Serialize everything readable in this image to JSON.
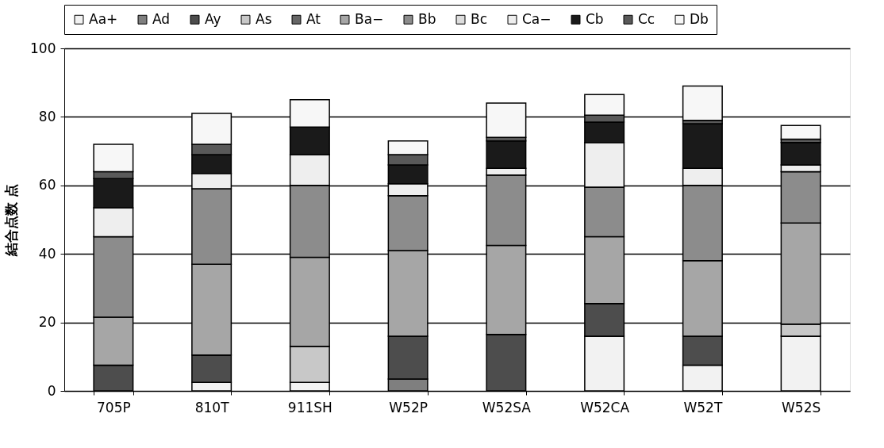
{
  "chart_data": {
    "type": "bar",
    "stacked": true,
    "ylabel": "結合点数  点",
    "categories": [
      "705P",
      "810T",
      "911SH",
      "W52P",
      "W52SA",
      "W52CA",
      "W52T",
      "W52S"
    ],
    "ylim": [
      0,
      100
    ],
    "yticks": [
      0,
      20,
      40,
      60,
      80,
      100
    ],
    "grid": "y",
    "legend": "top",
    "series": [
      {
        "name": "Aa+",
        "color": "#f2f2f2",
        "values": [
          0,
          2.5,
          2.5,
          0,
          0,
          16,
          7.5,
          16
        ]
      },
      {
        "name": "Ad",
        "color": "#7f7f7f",
        "values": [
          0,
          0,
          0,
          3.5,
          0,
          0,
          0,
          0
        ]
      },
      {
        "name": "Ay",
        "color": "#4d4d4d",
        "values": [
          7.5,
          8,
          0,
          12.5,
          16.5,
          9.5,
          8.5,
          0
        ]
      },
      {
        "name": "As",
        "color": "#c8c8c8",
        "values": [
          0,
          0,
          10.5,
          0,
          0,
          0,
          0,
          3.5
        ]
      },
      {
        "name": "At",
        "color": "#666666",
        "values": [
          0,
          0,
          0,
          0,
          0,
          0,
          0,
          0
        ]
      },
      {
        "name": "Ba−",
        "color": "#a6a6a6",
        "values": [
          14,
          26.5,
          26,
          25,
          26,
          19.5,
          22,
          29.5
        ]
      },
      {
        "name": "Bb",
        "color": "#8c8c8c",
        "values": [
          23.5,
          22,
          21,
          16,
          20.5,
          14.5,
          22,
          15
        ]
      },
      {
        "name": "Bc",
        "color": "#dddddd",
        "values": [
          0,
          0,
          0,
          0,
          0,
          0,
          0,
          0
        ]
      },
      {
        "name": "Ca−",
        "color": "#eeeeee",
        "values": [
          8.5,
          4.5,
          9,
          3.5,
          2,
          13,
          5,
          2
        ]
      },
      {
        "name": "Cb",
        "color": "#1a1a1a",
        "values": [
          8.5,
          5.5,
          8,
          5.5,
          8,
          6,
          13,
          6.5
        ]
      },
      {
        "name": "Cc",
        "color": "#595959",
        "values": [
          2,
          3,
          0,
          3,
          1,
          2,
          1,
          1
        ]
      },
      {
        "name": "Db",
        "color": "#f7f7f7",
        "values": [
          8,
          9,
          8,
          4,
          10,
          6,
          10,
          4
        ]
      }
    ]
  }
}
